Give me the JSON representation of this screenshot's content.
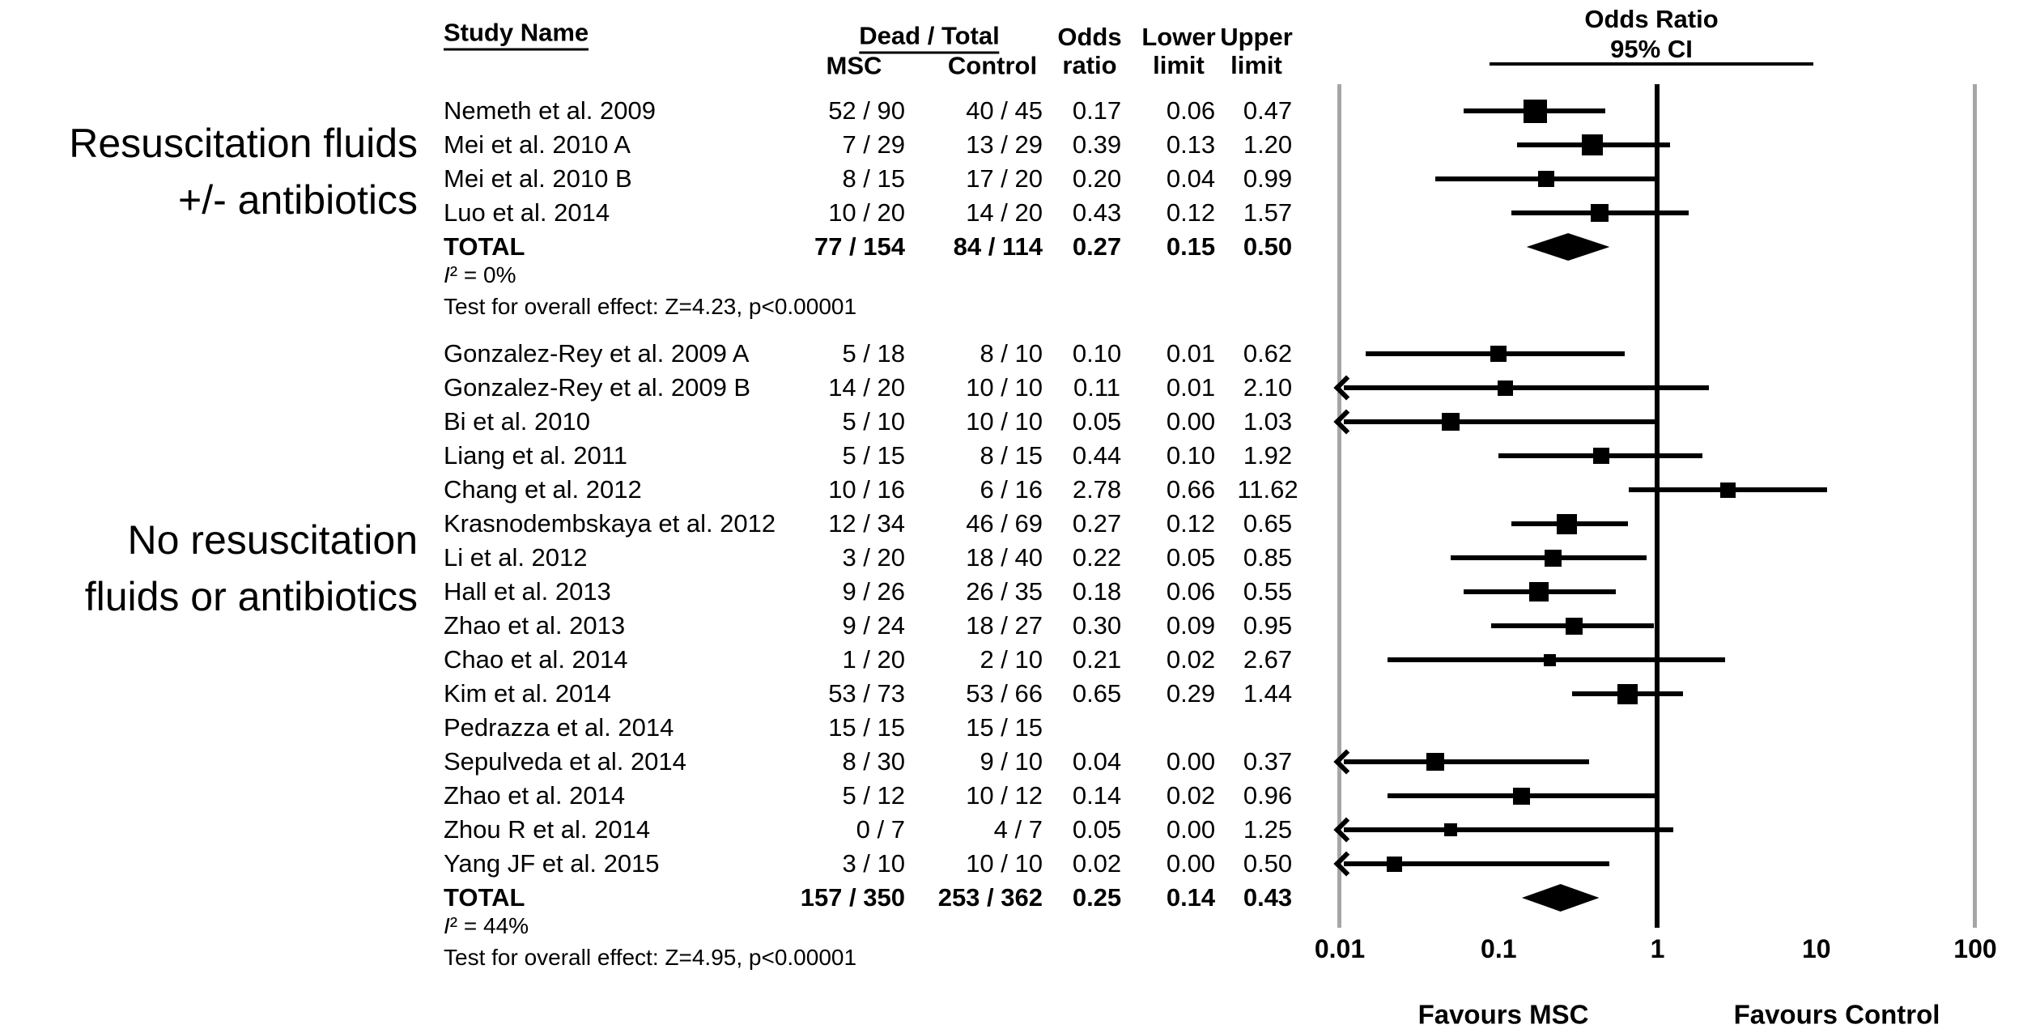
{
  "figure": {
    "header": {
      "study_name": "Study Name",
      "dead_total": "Dead / Total",
      "msc": "MSC",
      "control": "Control",
      "odds": [
        "Odds",
        "ratio"
      ],
      "lower": [
        "Lower",
        "limit"
      ],
      "upper": [
        "Upper",
        "limit"
      ]
    }
  },
  "chart_data": {
    "type": "forest",
    "title_lines": [
      "Odds Ratio",
      "95% CI"
    ],
    "x_scale": "log10",
    "x_range": [
      0.01,
      100
    ],
    "x_ticks": [
      0.01,
      0.1,
      1,
      10,
      100
    ],
    "x_tick_labels": [
      "0.01",
      "0.1",
      "1",
      "10",
      "100"
    ],
    "reference_line": 1,
    "favours": [
      "Favours MSC",
      "Favours Control"
    ],
    "columns": [
      "Study Name",
      "Dead / Total MSC",
      "Dead / Total Control",
      "Odds ratio",
      "Lower limit",
      "Upper limit"
    ],
    "groups": [
      {
        "label_lines": [
          "Resuscitation fluids",
          "+/- antibiotics"
        ],
        "studies": [
          {
            "name": "Nemeth et al. 2009",
            "msc": "52 / 90",
            "control": "40 / 45",
            "or": "0.17",
            "lower": "0.06",
            "upper": "0.47",
            "plot": {
              "or": 0.17,
              "lo": 0.06,
              "hi": 0.47,
              "size": 29,
              "arrow_left": false
            }
          },
          {
            "name": "Mei et al. 2010 A",
            "msc": "7 / 29",
            "control": "13 / 29",
            "or": "0.39",
            "lower": "0.13",
            "upper": "1.20",
            "plot": {
              "or": 0.39,
              "lo": 0.13,
              "hi": 1.2,
              "size": 26,
              "arrow_left": false
            }
          },
          {
            "name": "Mei et al. 2010 B",
            "msc": "8 / 15",
            "control": "17 / 20",
            "or": "0.20",
            "lower": "0.04",
            "upper": "0.99",
            "plot": {
              "or": 0.2,
              "lo": 0.04,
              "hi": 0.99,
              "size": 20,
              "arrow_left": false
            }
          },
          {
            "name": "Luo et al. 2014",
            "msc": "10 / 20",
            "control": "14 / 20",
            "or": "0.43",
            "lower": "0.12",
            "upper": "1.57",
            "plot": {
              "or": 0.43,
              "lo": 0.12,
              "hi": 1.57,
              "size": 22,
              "arrow_left": false
            }
          }
        ],
        "total": {
          "name": "TOTAL",
          "msc": "77 / 154",
          "control": "84 / 114",
          "or": "0.27",
          "lower": "0.15",
          "upper": "0.50",
          "plot": {
            "lo": 0.15,
            "hi": 0.5,
            "height": 34
          }
        },
        "heterogeneity": "I² = 0%",
        "effect_test": "Test for overall effect: Z=4.23, p<0.00001"
      },
      {
        "label_lines": [
          "No resuscitation",
          "fluids or antibiotics"
        ],
        "studies": [
          {
            "name": "Gonzalez-Rey et al. 2009 A",
            "msc": "5 / 18",
            "control": "8 / 10",
            "or": "0.10",
            "lower": "0.01",
            "upper": "0.62",
            "plot": {
              "or": 0.1,
              "lo": 0.0145,
              "hi": 0.62,
              "size": 20,
              "arrow_left": false
            }
          },
          {
            "name": "Gonzalez-Rey et al. 2009 B",
            "msc": "14 / 20",
            "control": "10 / 10",
            "or": "0.11",
            "lower": "0.01",
            "upper": "2.10",
            "plot": {
              "or": 0.11,
              "lo": 0.01,
              "hi": 2.1,
              "size": 19,
              "arrow_left": true
            }
          },
          {
            "name": "Bi et al. 2010",
            "msc": "5 / 10",
            "control": "10 / 10",
            "or": "0.05",
            "lower": "0.00",
            "upper": "1.03",
            "plot": {
              "or": 0.05,
              "lo": 0.01,
              "hi": 1.03,
              "size": 22,
              "arrow_left": true
            }
          },
          {
            "name": "Liang et al. 2011",
            "msc": "5 / 15",
            "control": "8 / 15",
            "or": "0.44",
            "lower": "0.10",
            "upper": "1.92",
            "plot": {
              "or": 0.44,
              "lo": 0.1,
              "hi": 1.92,
              "size": 20,
              "arrow_left": false
            }
          },
          {
            "name": "Chang et al. 2012",
            "msc": "10 / 16",
            "control": "6 / 16",
            "or": "2.78",
            "lower": "0.66",
            "upper": "11.62",
            "plot": {
              "or": 2.78,
              "lo": 0.66,
              "hi": 11.62,
              "size": 19,
              "arrow_left": false
            }
          },
          {
            "name": "Krasnodembskaya et al. 2012",
            "msc": "12 / 34",
            "control": "46 / 69",
            "or": "0.27",
            "lower": "0.12",
            "upper": "0.65",
            "plot": {
              "or": 0.27,
              "lo": 0.12,
              "hi": 0.65,
              "size": 25,
              "arrow_left": false
            }
          },
          {
            "name": "Li et al. 2012",
            "msc": "3 / 20",
            "control": "18 / 40",
            "or": "0.22",
            "lower": "0.05",
            "upper": "0.85",
            "plot": {
              "or": 0.22,
              "lo": 0.05,
              "hi": 0.85,
              "size": 21,
              "arrow_left": false
            }
          },
          {
            "name": "Hall et al. 2013",
            "msc": "9 / 26",
            "control": "26 / 35",
            "or": "0.18",
            "lower": "0.06",
            "upper": "0.55",
            "plot": {
              "or": 0.18,
              "lo": 0.06,
              "hi": 0.55,
              "size": 24,
              "arrow_left": false
            }
          },
          {
            "name": "Zhao et al. 2013",
            "msc": "9 / 24",
            "control": "18 / 27",
            "or": "0.30",
            "lower": "0.09",
            "upper": "0.95",
            "plot": {
              "or": 0.3,
              "lo": 0.09,
              "hi": 0.95,
              "size": 21,
              "arrow_left": false
            }
          },
          {
            "name": "Chao et al. 2014",
            "msc": "1 / 20",
            "control": "2 / 10",
            "or": "0.21",
            "lower": "0.02",
            "upper": "2.67",
            "plot": {
              "or": 0.21,
              "lo": 0.02,
              "hi": 2.67,
              "size": 15,
              "arrow_left": false
            }
          },
          {
            "name": "Kim et al. 2014",
            "msc": "53 / 73",
            "control": "53 / 66",
            "or": "0.65",
            "lower": "0.29",
            "upper": "1.44",
            "plot": {
              "or": 0.65,
              "lo": 0.29,
              "hi": 1.44,
              "size": 25,
              "arrow_left": false
            }
          },
          {
            "name": "Pedrazza et al. 2014",
            "msc": "15 / 15",
            "control": "15 / 15",
            "or": "",
            "lower": "",
            "upper": "",
            "plot": null
          },
          {
            "name": "Sepulveda et al. 2014",
            "msc": "8 / 30",
            "control": "9 / 10",
            "or": "0.04",
            "lower": "0.00",
            "upper": "0.37",
            "plot": {
              "or": 0.04,
              "lo": 0.01,
              "hi": 0.37,
              "size": 22,
              "arrow_left": true
            }
          },
          {
            "name": "Zhao et al. 2014",
            "msc": "5 / 12",
            "control": "10 / 12",
            "or": "0.14",
            "lower": "0.02",
            "upper": "0.96",
            "plot": {
              "or": 0.14,
              "lo": 0.02,
              "hi": 0.96,
              "size": 21,
              "arrow_left": false
            }
          },
          {
            "name": "Zhou R et al. 2014",
            "msc": "0 / 7",
            "control": "4 / 7",
            "or": "0.05",
            "lower": "0.00",
            "upper": "1.25",
            "plot": {
              "or": 0.05,
              "lo": 0.01,
              "hi": 1.25,
              "size": 16,
              "arrow_left": true
            }
          },
          {
            "name": "Yang JF et al. 2015",
            "msc": "3 / 10",
            "control": "10 / 10",
            "or": "0.02",
            "lower": "0.00",
            "upper": "0.50",
            "plot": {
              "or": 0.022,
              "lo": 0.01,
              "hi": 0.5,
              "size": 19,
              "arrow_left": true
            }
          }
        ],
        "total": {
          "name": "TOTAL",
          "msc": "157 / 350",
          "control": "253 / 362",
          "or": "0.25",
          "lower": "0.14",
          "upper": "0.43",
          "plot": {
            "lo": 0.14,
            "hi": 0.43,
            "height": 34
          }
        },
        "heterogeneity": "I² = 44%",
        "effect_test": "Test for overall effect: Z=4.95, p<0.00001"
      }
    ]
  },
  "colors": {
    "marker": "#000000",
    "reference_line": "#000000",
    "boundary_line": "#a6a6a6",
    "text": "#000000",
    "background": "#ffffff"
  }
}
